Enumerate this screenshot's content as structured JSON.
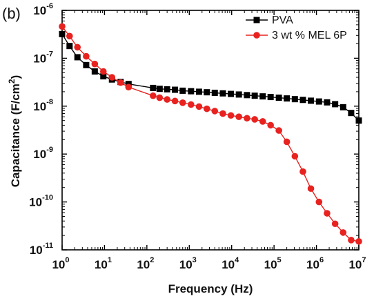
{
  "panel_label": "(b)",
  "chart_data": {
    "type": "line",
    "xlabel": "Frequency (Hz)",
    "ylabel": "Capacitance (F/cm²)",
    "ylabel_parts": [
      "Capacitance (F/cm",
      "2",
      ")"
    ],
    "x_scale": "log",
    "y_scale": "log",
    "xlim": [
      1,
      10000000
    ],
    "ylim": [
      1e-11,
      1e-06
    ],
    "x_ticks": [
      {
        "base": "10",
        "exp": "0",
        "value": 1
      },
      {
        "base": "10",
        "exp": "1",
        "value": 10
      },
      {
        "base": "10",
        "exp": "2",
        "value": 100
      },
      {
        "base": "10",
        "exp": "3",
        "value": 1000
      },
      {
        "base": "10",
        "exp": "4",
        "value": 10000
      },
      {
        "base": "10",
        "exp": "5",
        "value": 100000
      },
      {
        "base": "10",
        "exp": "6",
        "value": 1000000
      },
      {
        "base": "10",
        "exp": "7",
        "value": 10000000
      }
    ],
    "y_ticks": [
      {
        "base": "10",
        "exp": "-6",
        "value": 1e-06
      },
      {
        "base": "10",
        "exp": "-7",
        "value": 1e-07
      },
      {
        "base": "10",
        "exp": "-8",
        "value": 1e-08
      },
      {
        "base": "10",
        "exp": "-9",
        "value": 1e-09
      },
      {
        "base": "10",
        "exp": "-10",
        "value": 1e-10
      },
      {
        "base": "10",
        "exp": "-11",
        "value": 1e-11
      }
    ],
    "grid": false,
    "legend_position": "top-right",
    "series": [
      {
        "name": "PVA",
        "color": "#000000",
        "marker": "square",
        "x": [
          1,
          1.5,
          2.3,
          3.7,
          5.9,
          9.4,
          15,
          24,
          37,
          140,
          200,
          300,
          460,
          700,
          1100,
          1700,
          2600,
          4000,
          6200,
          9600,
          14800,
          23000,
          35000,
          54000,
          83000,
          130000,
          200000,
          310000,
          480000,
          740000,
          1150000,
          1780000,
          2760000,
          4270000,
          6600000,
          10000000
        ],
        "y": [
          3.2e-07,
          1.8e-07,
          1.05e-07,
          7.2e-08,
          5.3e-08,
          4.2e-08,
          3.6e-08,
          3.2e-08,
          2.9e-08,
          2.4e-08,
          2.3e-08,
          2.25e-08,
          2.2e-08,
          2.1e-08,
          2.05e-08,
          2e-08,
          1.95e-08,
          1.9e-08,
          1.85e-08,
          1.8e-08,
          1.75e-08,
          1.7e-08,
          1.65e-08,
          1.6e-08,
          1.55e-08,
          1.5e-08,
          1.45e-08,
          1.4e-08,
          1.35e-08,
          1.3e-08,
          1.25e-08,
          1.2e-08,
          1.1e-08,
          9.5e-09,
          7.2e-09,
          5e-09
        ]
      },
      {
        "name": "3 wt % MEL 6P",
        "color": "#e8221f",
        "marker": "circle",
        "x": [
          1,
          1.5,
          2.3,
          3.7,
          5.9,
          9.4,
          15,
          24,
          37,
          140,
          200,
          300,
          460,
          700,
          1100,
          1700,
          2600,
          4000,
          6200,
          9600,
          14800,
          23000,
          35000,
          54000,
          83000,
          130000,
          200000,
          310000,
          480000,
          740000,
          1150000,
          1780000,
          2760000,
          4270000,
          6600000,
          10000000
        ],
        "y": [
          4.6e-07,
          2.9e-07,
          1.7e-07,
          1.1e-07,
          7.6e-08,
          5.3e-08,
          4e-08,
          3.1e-08,
          2.5e-08,
          1.65e-08,
          1.5e-08,
          1.38e-08,
          1.28e-08,
          1.18e-08,
          1.08e-08,
          9.8e-09,
          8.8e-09,
          7.9e-09,
          7e-09,
          6.4e-09,
          6e-09,
          5.6e-09,
          5.3e-09,
          4.8e-09,
          4e-09,
          3.1e-09,
          1.8e-09,
          9e-10,
          4.3e-10,
          1.9e-10,
          1e-10,
          5.8e-11,
          3.5e-11,
          2.3e-11,
          1.6e-11,
          1.5e-11
        ]
      }
    ]
  }
}
